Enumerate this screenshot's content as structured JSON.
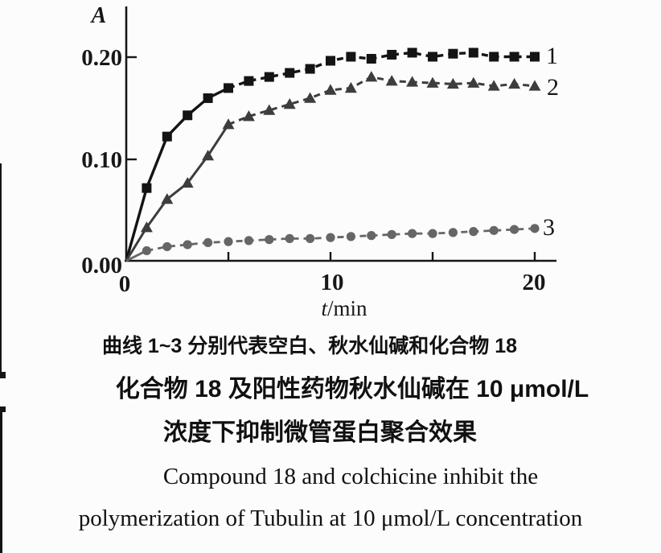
{
  "figure": {
    "y_axis_letter": "A",
    "x_axis_var": "t",
    "x_axis_unit": "/min",
    "y_tick_labels": {
      "t0": "0.00",
      "t1": "0.10",
      "t2": "0.20"
    },
    "x_tick_labels": {
      "t0": "0",
      "t1": "10",
      "t2": "20"
    },
    "curve_number_labels": {
      "c1": "1",
      "c2": "2",
      "c3": "3"
    }
  },
  "caption": {
    "legend_cn": "曲线 1~3 分别代表空白、秋水仙碱和化合物 18",
    "title_cn_line1": "化合物 18 及阳性药物秋水仙碱在 10 μmol/L",
    "title_cn_line2": "浓度下抑制微管蛋白聚合效果",
    "title_en_line1": "Compound 18 and colchicine inhibit the",
    "title_en_line2": "polymerization of Tubulin at 10 μmol/L concentration"
  },
  "chart_data": {
    "type": "line",
    "title": "",
    "xlabel": "t/min",
    "ylabel": "A",
    "xlim": [
      0,
      21
    ],
    "ylim": [
      0,
      0.25
    ],
    "x_tick_values": [
      0,
      5,
      10,
      15,
      20
    ],
    "x_ticks_labeled": [
      0,
      10,
      20
    ],
    "y_tick_values": [
      0.0,
      0.1,
      0.2
    ],
    "grid": false,
    "legend_position": "right-of-last-point",
    "starts_at_origin": true,
    "x": [
      1,
      2,
      3,
      4,
      5,
      6,
      7,
      8,
      9,
      10,
      11,
      12,
      13,
      14,
      15,
      16,
      17,
      18,
      19,
      20
    ],
    "series": [
      {
        "name": "1",
        "meaning": "空白 (blank)",
        "marker": "square",
        "color": "#141414",
        "line_style": "solid-then-dashed",
        "solid_until_t": 5,
        "values": [
          0.072,
          0.123,
          0.144,
          0.161,
          0.171,
          0.178,
          0.182,
          0.186,
          0.19,
          0.198,
          0.202,
          0.2,
          0.204,
          0.206,
          0.202,
          0.205,
          0.206,
          0.202,
          0.202,
          0.202
        ]
      },
      {
        "name": "2",
        "meaning": "秋水仙碱 (colchicine)",
        "marker": "triangle",
        "color": "#3d3d3d",
        "line_style": "solid-then-dashed",
        "solid_until_t": 5,
        "values": [
          0.033,
          0.061,
          0.077,
          0.104,
          0.135,
          0.143,
          0.149,
          0.155,
          0.161,
          0.169,
          0.171,
          0.182,
          0.178,
          0.177,
          0.176,
          0.175,
          0.176,
          0.173,
          0.175,
          0.173
        ]
      },
      {
        "name": "3",
        "meaning": "化合物 18 (compound 18)",
        "marker": "circle",
        "color": "#666666",
        "line_style": "solid-then-dashed",
        "solid_until_t": 1,
        "values": [
          0.01,
          0.014,
          0.016,
          0.018,
          0.019,
          0.02,
          0.021,
          0.022,
          0.022,
          0.023,
          0.024,
          0.025,
          0.026,
          0.027,
          0.027,
          0.028,
          0.029,
          0.03,
          0.031,
          0.032
        ]
      }
    ]
  }
}
